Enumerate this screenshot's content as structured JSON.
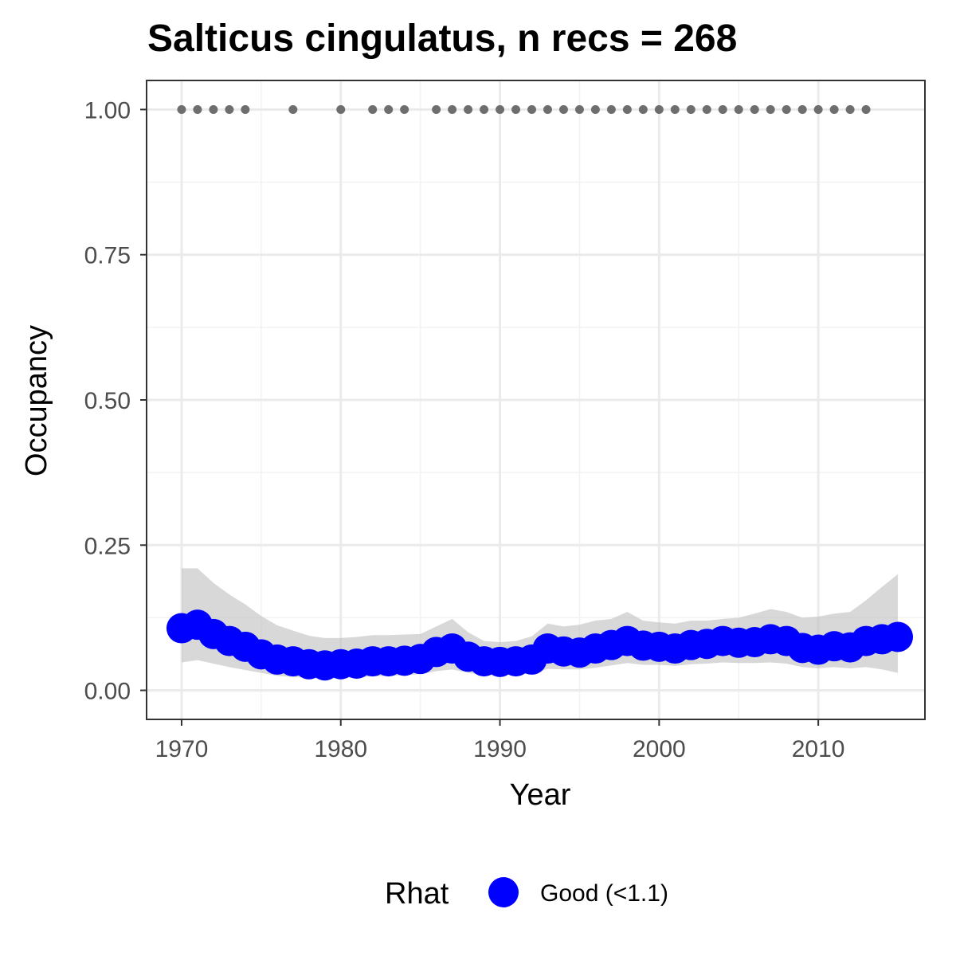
{
  "chart_data": {
    "type": "line",
    "title": "Salticus cingulatus, n recs = 268",
    "xlabel": "Year",
    "ylabel": "Occupancy",
    "xlim": [
      1967.8,
      2016.7
    ],
    "ylim": [
      -0.05,
      1.05
    ],
    "x_ticks": [
      1970,
      1980,
      1990,
      2000,
      2010
    ],
    "x_tick_labels": [
      "1970",
      "1980",
      "1990",
      "2000",
      "2010"
    ],
    "y_ticks": [
      0,
      0.25,
      0.5,
      0.75,
      1
    ],
    "y_tick_labels": [
      "0.00",
      "0.25",
      "0.50",
      "0.75",
      "1.00"
    ],
    "grid": true,
    "years": [
      1970,
      1971,
      1972,
      1973,
      1974,
      1975,
      1976,
      1977,
      1978,
      1979,
      1980,
      1981,
      1982,
      1983,
      1984,
      1985,
      1986,
      1987,
      1988,
      1989,
      1990,
      1991,
      1992,
      1993,
      1994,
      1995,
      1996,
      1997,
      1998,
      1999,
      2000,
      2001,
      2002,
      2003,
      2004,
      2005,
      2006,
      2007,
      2008,
      2009,
      2010,
      2011,
      2012,
      2013,
      2014,
      2015
    ],
    "series": [
      {
        "values": [
          0.107,
          0.113,
          0.097,
          0.085,
          0.075,
          0.062,
          0.053,
          0.05,
          0.045,
          0.043,
          0.045,
          0.046,
          0.05,
          0.05,
          0.051,
          0.054,
          0.066,
          0.072,
          0.058,
          0.05,
          0.049,
          0.05,
          0.053,
          0.072,
          0.067,
          0.065,
          0.072,
          0.078,
          0.085,
          0.077,
          0.075,
          0.072,
          0.078,
          0.08,
          0.085,
          0.082,
          0.083,
          0.088,
          0.085,
          0.073,
          0.07,
          0.076,
          0.074,
          0.085,
          0.088,
          0.092
        ],
        "lower": [
          0.048,
          0.052,
          0.046,
          0.04,
          0.035,
          0.03,
          0.025,
          0.023,
          0.021,
          0.02,
          0.021,
          0.022,
          0.024,
          0.025,
          0.026,
          0.028,
          0.033,
          0.036,
          0.03,
          0.026,
          0.026,
          0.027,
          0.029,
          0.037,
          0.036,
          0.036,
          0.039,
          0.043,
          0.047,
          0.044,
          0.044,
          0.042,
          0.045,
          0.046,
          0.048,
          0.047,
          0.047,
          0.048,
          0.046,
          0.04,
          0.038,
          0.04,
          0.038,
          0.04,
          0.036,
          0.03
        ],
        "upper": [
          0.21,
          0.21,
          0.185,
          0.165,
          0.148,
          0.128,
          0.112,
          0.103,
          0.094,
          0.09,
          0.09,
          0.092,
          0.095,
          0.095,
          0.096,
          0.097,
          0.11,
          0.123,
          0.1,
          0.085,
          0.083,
          0.085,
          0.093,
          0.115,
          0.11,
          0.113,
          0.12,
          0.123,
          0.135,
          0.12,
          0.117,
          0.115,
          0.12,
          0.12,
          0.123,
          0.125,
          0.132,
          0.14,
          0.135,
          0.125,
          0.127,
          0.132,
          0.135,
          0.155,
          0.178,
          0.2
        ],
        "color": "#0000ff",
        "ribbon_color": "#bebebe"
      }
    ],
    "records": {
      "years": [
        1970,
        1971,
        1972,
        1973,
        1974,
        1977,
        1980,
        1982,
        1983,
        1984,
        1986,
        1987,
        1988,
        1989,
        1990,
        1991,
        1992,
        1993,
        1994,
        1995,
        1996,
        1997,
        1998,
        1999,
        2000,
        2001,
        2002,
        2003,
        2004,
        2005,
        2006,
        2007,
        2008,
        2009,
        2010,
        2011,
        2012,
        2013
      ],
      "value": 1.0,
      "color": "#6e6e6e"
    },
    "legend": {
      "position": "bottom",
      "title": "Rhat",
      "items": [
        {
          "label": "Good (<1.1)",
          "color": "#0000ff"
        }
      ]
    }
  }
}
